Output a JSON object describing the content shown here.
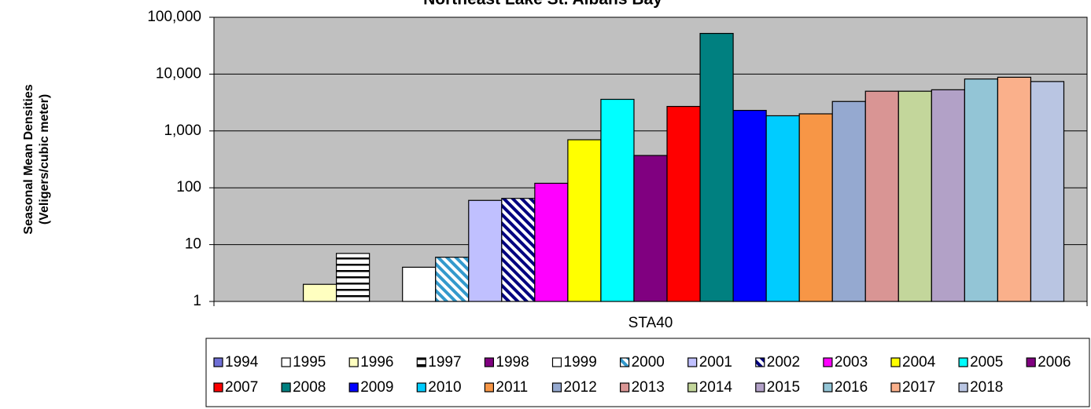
{
  "chart_data": {
    "type": "bar",
    "title": "Northeast Lake St. Albans Bay",
    "ylabel": [
      "Seasonal Mean Densities",
      "(Veligers/cubic meter)"
    ],
    "categories": [
      "STA40"
    ],
    "log_scale": true,
    "grid": true,
    "ylim": [
      1,
      100000
    ],
    "yticks": [
      1,
      10,
      100,
      {
        "value": 1000,
        "label": "1,000"
      },
      {
        "value": 10000,
        "label": "10,000"
      },
      {
        "value": 100000,
        "label": "100,000"
      }
    ],
    "legend": "bottom",
    "series": [
      {
        "name": "1994",
        "color": "#6f6fd6",
        "values": [
          null
        ]
      },
      {
        "name": "1995",
        "color": "#ffffff",
        "values": [
          null
        ]
      },
      {
        "name": "1996",
        "color": "#ffffc0",
        "values": [
          2
        ]
      },
      {
        "name": "1997",
        "color": "#000000",
        "pattern": "horizontal",
        "values": [
          7
        ]
      },
      {
        "name": "1998",
        "color": "#800080",
        "values": [
          null
        ]
      },
      {
        "name": "1999",
        "color": "#ffffff",
        "values": [
          4
        ]
      },
      {
        "name": "2000",
        "color": "#3399cc",
        "pattern": "diagonal",
        "values": [
          6
        ]
      },
      {
        "name": "2001",
        "color": "#c0c0ff",
        "values": [
          60
        ]
      },
      {
        "name": "2002",
        "color": "#000080",
        "pattern": "diagonal",
        "values": [
          65
        ]
      },
      {
        "name": "2003",
        "color": "#ff00ff",
        "values": [
          120
        ]
      },
      {
        "name": "2004",
        "color": "#ffff00",
        "values": [
          700
        ]
      },
      {
        "name": "2005",
        "color": "#00ffff",
        "values": [
          3600
        ]
      },
      {
        "name": "2006",
        "color": "#800080",
        "values": [
          370
        ]
      },
      {
        "name": "2007",
        "color": "#ff0000",
        "values": [
          2700
        ]
      },
      {
        "name": "2008",
        "color": "#008080",
        "values": [
          52000
        ]
      },
      {
        "name": "2009",
        "color": "#0000ff",
        "values": [
          2300
        ]
      },
      {
        "name": "2010",
        "color": "#00ccff",
        "values": [
          1850
        ]
      },
      {
        "name": "2011",
        "color": "#f79646",
        "values": [
          2000
        ]
      },
      {
        "name": "2012",
        "color": "#95a9d0",
        "values": [
          3300
        ]
      },
      {
        "name": "2013",
        "color": "#d99594",
        "values": [
          5000
        ]
      },
      {
        "name": "2014",
        "color": "#c3d69b",
        "values": [
          5000
        ]
      },
      {
        "name": "2015",
        "color": "#b2a1c7",
        "values": [
          5300
        ]
      },
      {
        "name": "2016",
        "color": "#93c5d6",
        "values": [
          8200
        ]
      },
      {
        "name": "2017",
        "color": "#fab08b",
        "values": [
          8800
        ]
      },
      {
        "name": "2018",
        "color": "#b9c5e2",
        "values": [
          7400
        ]
      }
    ]
  }
}
